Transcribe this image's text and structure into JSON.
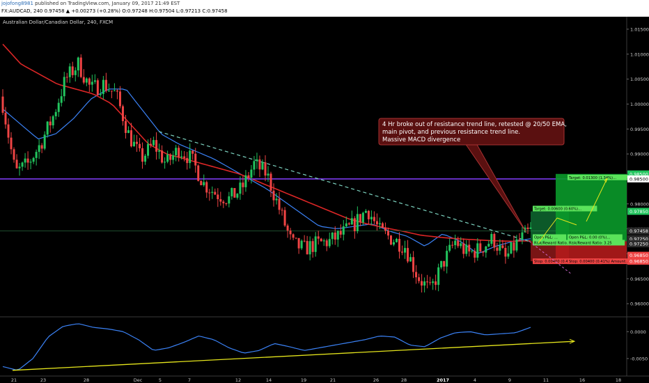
{
  "header": {
    "username": "jojofong8981",
    "published": "published on TradingView.com, January 09, 2017 21:49 EST",
    "ohlc_line": "FX:AUDCAD, 240  0.97458 ▲ +0.00273 (+0.28%)  O:0.97248  H:0.97504  L:0.97213  C:0.97458"
  },
  "chart_title": "Australian Dollar/Canadian Dollar, 240, FXCM",
  "annotation": {
    "lines": [
      "4 Hr broke out of resistance trend line, retested @ 20/50 EMA,",
      "main pivot, and previous resistance trend line.",
      "Massive MACD divergence"
    ]
  },
  "colors": {
    "bull": "#22c55e",
    "bear": "#ef4444",
    "ema_fast": "#3b82f6",
    "ema_slow": "#dc2626",
    "pivot": "#7c3aed",
    "trend": "#7dd3c0",
    "macd": "#3b82f6",
    "divergence": "#e5e51c"
  },
  "price_axis": {
    "ticks": [
      "1.01500",
      "1.01000",
      "1.00500",
      "1.00000",
      "0.99500",
      "0.99000",
      "0.98500",
      "0.98000",
      "0.97500",
      "0.97000",
      "0.96500",
      "0.96000"
    ],
    "badges": [
      {
        "text": "0.98500",
        "bg": "#22c55e",
        "fg": "#ffffff",
        "price": 0.986
      },
      {
        "text": "0.98500",
        "bg": "#ffffff",
        "fg": "#000000",
        "price": 0.985
      },
      {
        "text": "0.97850",
        "bg": "#22c55e",
        "fg": "#ffffff",
        "price": 0.9785
      },
      {
        "text": "0.97458",
        "bg": "#2b2b2b",
        "fg": "#ffffff",
        "price": 0.97458
      },
      {
        "text": "0.97250",
        "bg": "#2b2b2b",
        "fg": "#ffffff",
        "price": 0.973
      },
      {
        "text": "0.97250",
        "bg": "#2b2b2b",
        "fg": "#ffffff",
        "price": 0.972
      },
      {
        "text": "0.96850",
        "bg": "#ef4444",
        "fg": "#ffffff",
        "price": 0.9697
      },
      {
        "text": "0.96850",
        "bg": "#ef4444",
        "fg": "#ffffff",
        "price": 0.9685
      }
    ]
  },
  "macd_axis": {
    "ticks": [
      "0.0000",
      "-0.0050"
    ]
  },
  "time_axis": {
    "labels": [
      "21",
      "23",
      "28",
      "Dec",
      "5",
      "7",
      "12",
      "14",
      "19",
      "21",
      "26",
      "28",
      "2017",
      "4",
      "9",
      "11",
      "16",
      "18"
    ]
  },
  "position_boxes": {
    "target_small": "Target: 0.00600 (0.60%)...",
    "open_pl_1": "Open P&L: ...",
    "rr_1": "Risk/Reward Ratio...",
    "stop_1": "Stop: 0.00400 (0.41%) Amo...",
    "target_big": "Target: 0.01300 (1.34%)...",
    "open_pl_2": "Open P&L: 0.00 (0%)...",
    "rr_2": "Risk/Reward Ratio: 3.25",
    "stop_2": "Stop: 0.00400 (0.41%) Amount:..."
  },
  "chart_data": [
    {
      "type": "candlestick",
      "title": "Australian Dollar/Canadian Dollar, 240, FXCM",
      "x_labels": [
        "21",
        "23",
        "28",
        "Dec",
        "5",
        "7",
        "12",
        "14",
        "19",
        "21",
        "26",
        "28",
        "2017",
        "4",
        "9",
        "11",
        "16",
        "18"
      ],
      "ylim": [
        0.9575,
        1.0175
      ],
      "grid": false,
      "close_path": [
        1.0,
        0.9862,
        0.988,
        0.992,
        0.9975,
        1.005,
        1.008,
        1.003,
        1.004,
        1.002,
        0.994,
        0.989,
        0.992,
        0.988,
        0.991,
        0.989,
        0.984,
        0.982,
        0.981,
        0.983,
        0.988,
        0.986,
        0.979,
        0.972,
        0.971,
        0.972,
        0.9725,
        0.974,
        0.976,
        0.979,
        0.9745,
        0.973,
        0.9715,
        0.9655,
        0.9625,
        0.968,
        0.9725,
        0.97,
        0.971,
        0.973,
        0.969,
        0.9725,
        0.9746
      ],
      "lines": [
        {
          "name": "EMA 20",
          "color": "#3b82f6",
          "values": [
            0.999,
            0.996,
            0.993,
            0.994,
            0.997,
            1.001,
            1.003,
            1.003,
            0.9985,
            0.994,
            0.992,
            0.9905,
            0.989,
            0.987,
            0.985,
            0.983,
            0.9805,
            0.978,
            0.9755,
            0.975,
            0.9755,
            0.976,
            0.9745,
            0.9735,
            0.9715,
            0.974,
            0.9725,
            0.97,
            0.9715,
            0.9725,
            0.973
          ]
        },
        {
          "name": "EMA 50",
          "color": "#dc2626",
          "values": [
            1.012,
            1.008,
            1.006,
            1.004,
            1.003,
            1.002,
            1.0,
            0.996,
            0.992,
            0.99,
            0.989,
            0.988,
            0.987,
            0.986,
            0.9845,
            0.983,
            0.9815,
            0.98,
            0.9785,
            0.977,
            0.976,
            0.9752,
            0.9745,
            0.9737,
            0.9733,
            0.973,
            0.9728,
            0.9726,
            0.9725,
            0.9726
          ]
        }
      ],
      "annotations": [
        {
          "kind": "horizontal_line",
          "label": "pivot",
          "price": 0.985,
          "color": "#7c3aed"
        },
        {
          "kind": "trend_line",
          "label": "resistance trend line",
          "from_price": 0.9945,
          "to_price": 0.9725,
          "style": "dashed"
        }
      ]
    },
    {
      "type": "line",
      "name": "MACD",
      "ylim": [
        -0.008,
        0.0025
      ],
      "series": [
        {
          "name": "MACD",
          "color": "#3b82f6",
          "values": [
            -0.0065,
            -0.0072,
            -0.005,
            -0.001,
            0.001,
            0.0015,
            0.0008,
            0.0005,
            0.0,
            -0.0015,
            -0.0035,
            -0.003,
            -0.002,
            -0.0008,
            -0.0015,
            -0.003,
            -0.004,
            -0.0035,
            -0.0022,
            -0.0028,
            -0.0035,
            -0.003,
            -0.0025,
            -0.002,
            -0.0015,
            -0.0008,
            -0.001,
            -0.0025,
            -0.0028,
            -0.0012,
            -0.0002,
            0.0,
            -0.0006,
            -0.0004,
            -0.0002,
            0.0008
          ]
        },
        {
          "name": "divergence",
          "color": "#e5e51c",
          "values": [
            -0.0072,
            -0.0018
          ]
        }
      ]
    }
  ]
}
